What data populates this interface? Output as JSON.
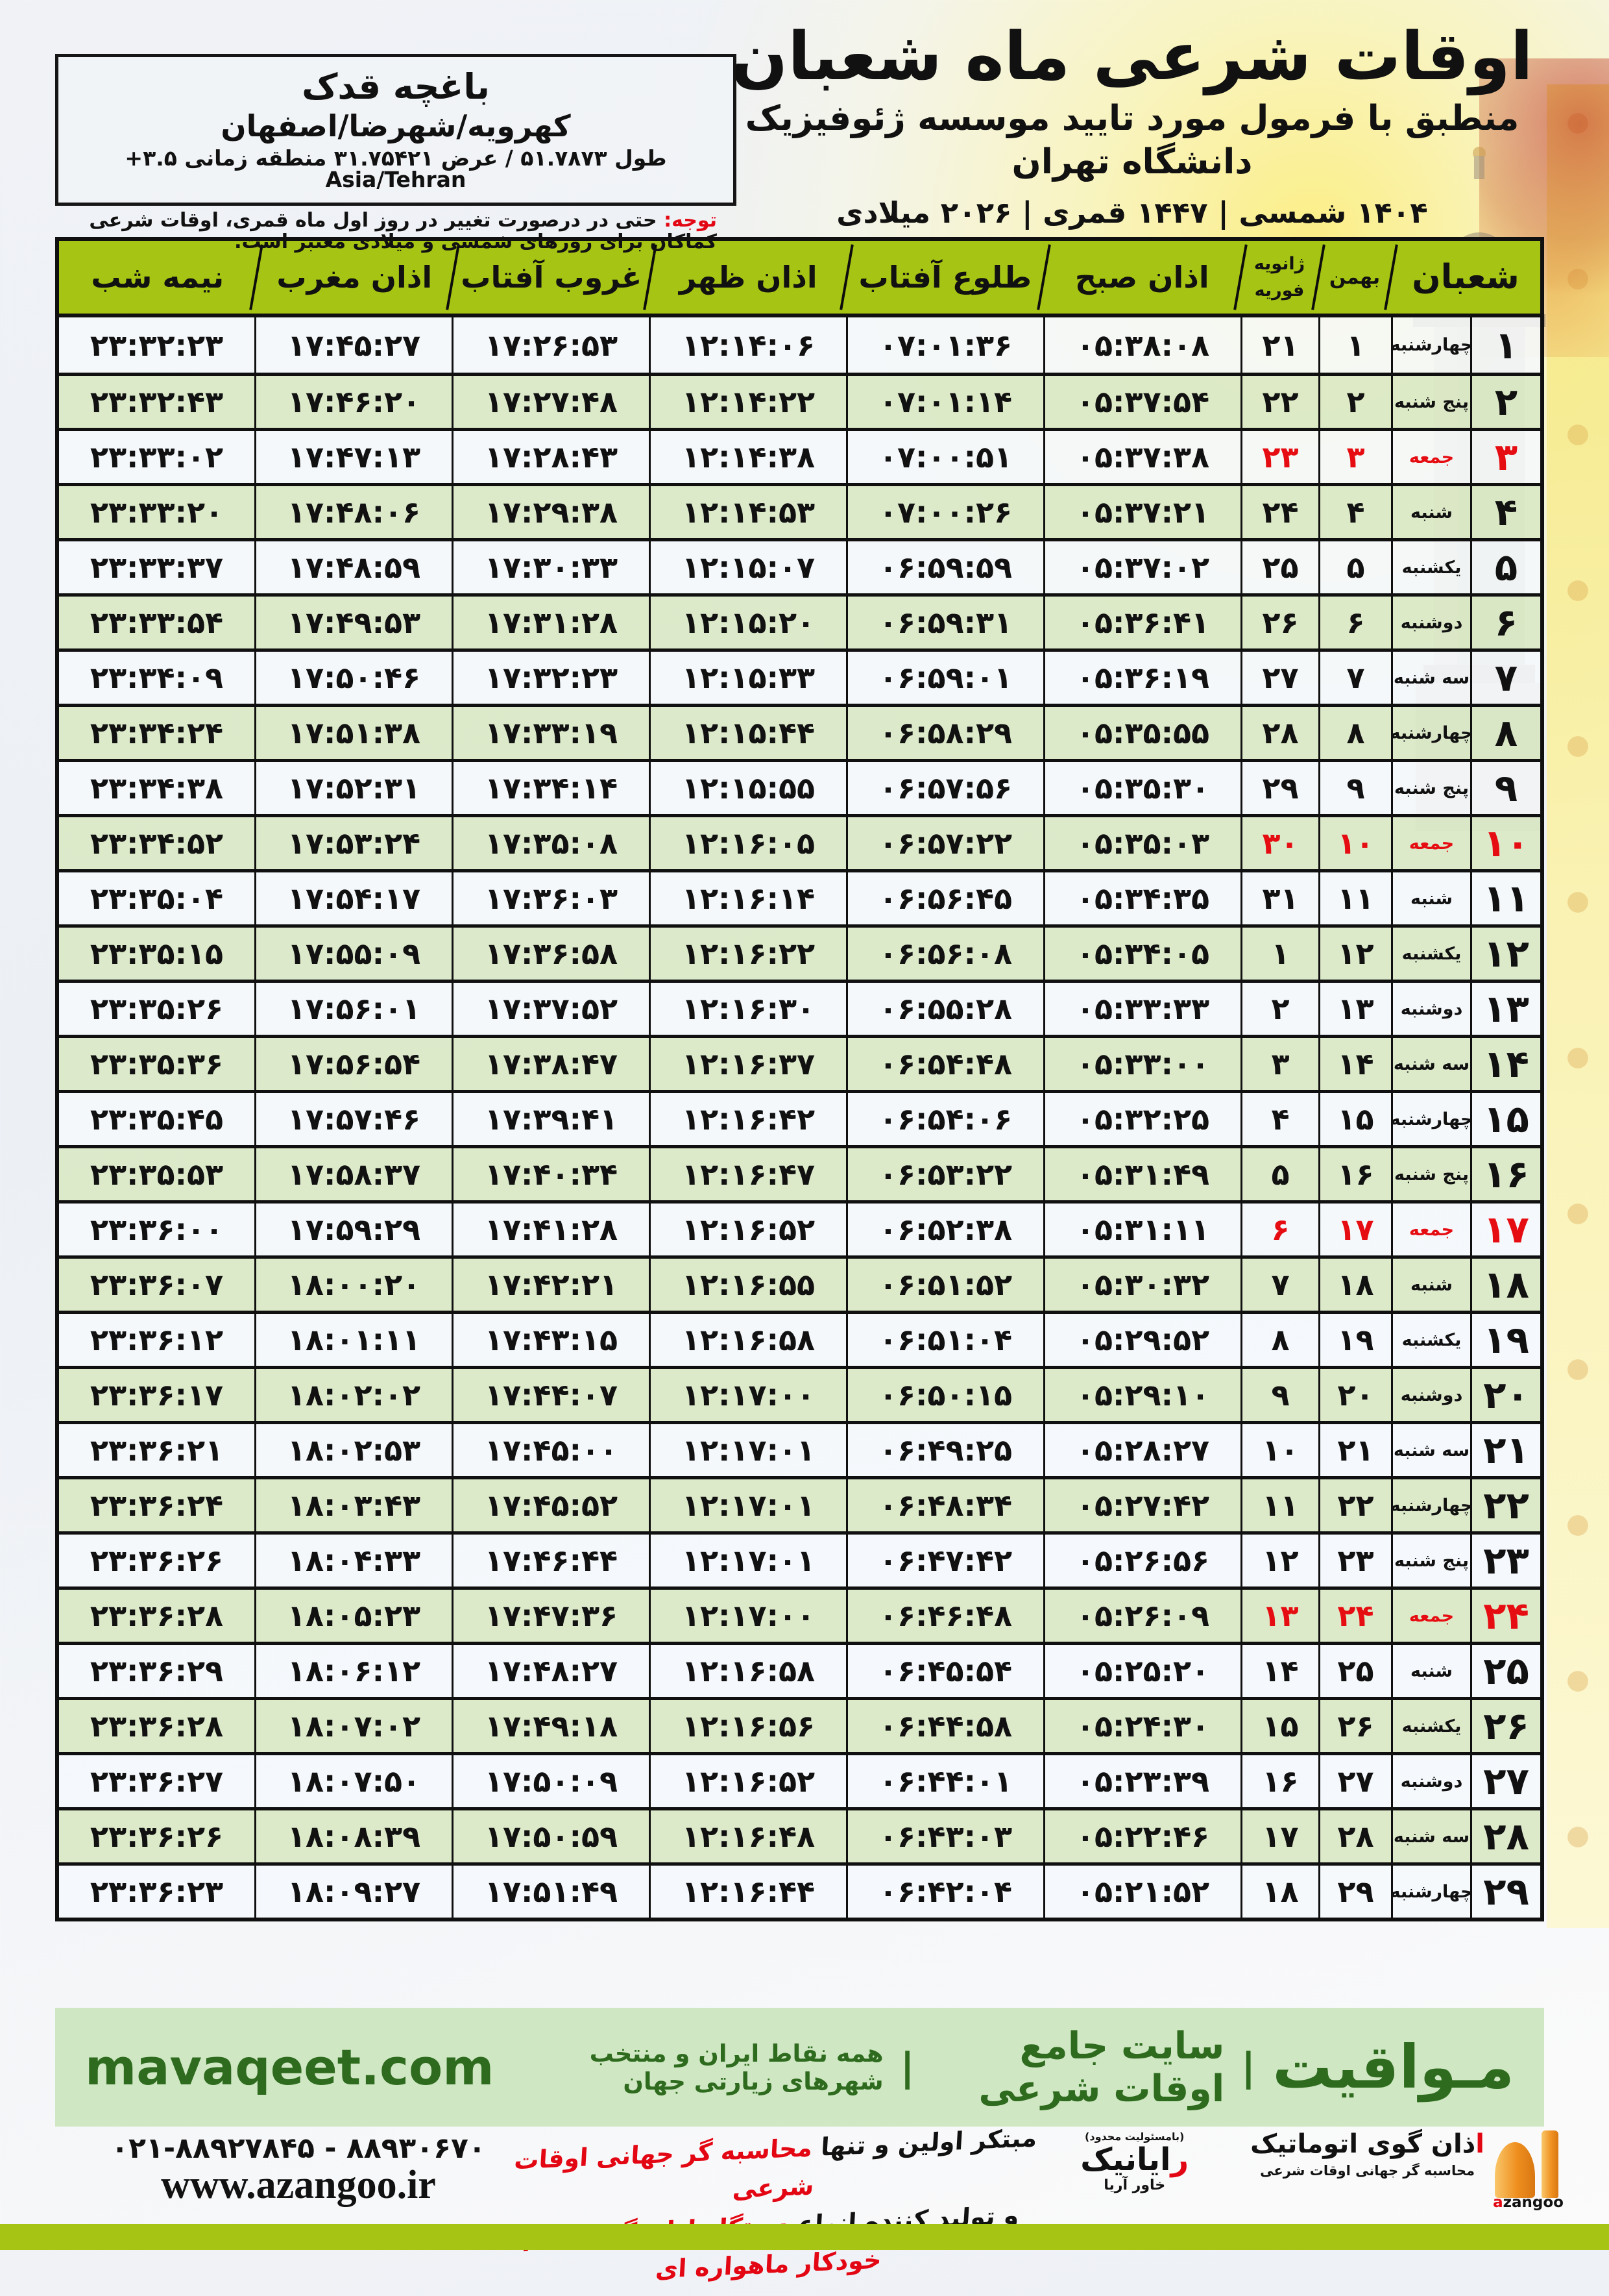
{
  "colors": {
    "header_green": "#a6c413",
    "row_green": "#dae8c6",
    "row_white": "#f5f8fb",
    "accent_red": "#e60d12",
    "band_bg": "#cfe8c3",
    "band_text": "#2e6b1e",
    "bottom_bar": "#a6c413"
  },
  "location_box": {
    "name": "باغچه قدک",
    "region": "کهرویه/شهرضا/اصفهان",
    "coords": "طول ۵۱.۷۸۷۳ / عرض ۳۱.۷۵۴۲۱ منطقه زمانی ۳.۵+ Asia/Tehran"
  },
  "header": {
    "title": "اوقات شرعی ماه شعبان",
    "subtitle": "منطبق با فرمول مورد تایید موسسه ژئوفیزیک دانشگاه تهران",
    "years": "۱۴۰۴ شمسی | ۱۴۴۷ قمری | ۲۰۲۶ میلادی"
  },
  "notice": {
    "label": "توجه:",
    "text": " حتی در درصورت تغییر در روز اول ماه قمری، اوقات شرعی کماکان برای روزهای شمسی و میلادی معتبر است."
  },
  "table": {
    "headers": {
      "shaban": "شعبان",
      "bahman": "بهمن",
      "jan": "ژانویه",
      "feb": "فوریه",
      "sobh": "اذان صبح",
      "tolu": "طلوع آفتاب",
      "zohr": "اذان ظهر",
      "ghorub": "غروب آفتاب",
      "maghreb": "اذان مغرب",
      "nimeshab": "نیمه شب"
    },
    "rows": [
      {
        "shaban": "۱",
        "weekday": "چهارشنبه",
        "bahman": "۱",
        "greg": "۲۱",
        "sobh": "۰۵:۳۸:۰۸",
        "tolu": "۰۷:۰۱:۳۶",
        "zohr": "۱۲:۱۴:۰۶",
        "ghorub": "۱۷:۲۶:۵۳",
        "maghreb": "۱۷:۴۵:۲۷",
        "nimeshab": "۲۳:۳۲:۲۳",
        "friday": false
      },
      {
        "shaban": "۲",
        "weekday": "پنج شنبه",
        "bahman": "۲",
        "greg": "۲۲",
        "sobh": "۰۵:۳۷:۵۴",
        "tolu": "۰۷:۰۱:۱۴",
        "zohr": "۱۲:۱۴:۲۲",
        "ghorub": "۱۷:۲۷:۴۸",
        "maghreb": "۱۷:۴۶:۲۰",
        "nimeshab": "۲۳:۳۲:۴۳",
        "friday": false
      },
      {
        "shaban": "۳",
        "weekday": "جمعه",
        "bahman": "۳",
        "greg": "۲۳",
        "sobh": "۰۵:۳۷:۳۸",
        "tolu": "۰۷:۰۰:۵۱",
        "zohr": "۱۲:۱۴:۳۸",
        "ghorub": "۱۷:۲۸:۴۳",
        "maghreb": "۱۷:۴۷:۱۳",
        "nimeshab": "۲۳:۳۳:۰۲",
        "friday": true
      },
      {
        "shaban": "۴",
        "weekday": "شنبه",
        "bahman": "۴",
        "greg": "۲۴",
        "sobh": "۰۵:۳۷:۲۱",
        "tolu": "۰۷:۰۰:۲۶",
        "zohr": "۱۲:۱۴:۵۳",
        "ghorub": "۱۷:۲۹:۳۸",
        "maghreb": "۱۷:۴۸:۰۶",
        "nimeshab": "۲۳:۳۳:۲۰",
        "friday": false
      },
      {
        "shaban": "۵",
        "weekday": "یکشنبه",
        "bahman": "۵",
        "greg": "۲۵",
        "sobh": "۰۵:۳۷:۰۲",
        "tolu": "۰۶:۵۹:۵۹",
        "zohr": "۱۲:۱۵:۰۷",
        "ghorub": "۱۷:۳۰:۳۳",
        "maghreb": "۱۷:۴۸:۵۹",
        "nimeshab": "۲۳:۳۳:۳۷",
        "friday": false
      },
      {
        "shaban": "۶",
        "weekday": "دوشنبه",
        "bahman": "۶",
        "greg": "۲۶",
        "sobh": "۰۵:۳۶:۴۱",
        "tolu": "۰۶:۵۹:۳۱",
        "zohr": "۱۲:۱۵:۲۰",
        "ghorub": "۱۷:۳۱:۲۸",
        "maghreb": "۱۷:۴۹:۵۳",
        "nimeshab": "۲۳:۳۳:۵۴",
        "friday": false
      },
      {
        "shaban": "۷",
        "weekday": "سه شنبه",
        "bahman": "۷",
        "greg": "۲۷",
        "sobh": "۰۵:۳۶:۱۹",
        "tolu": "۰۶:۵۹:۰۱",
        "zohr": "۱۲:۱۵:۳۳",
        "ghorub": "۱۷:۳۲:۲۳",
        "maghreb": "۱۷:۵۰:۴۶",
        "nimeshab": "۲۳:۳۴:۰۹",
        "friday": false
      },
      {
        "shaban": "۸",
        "weekday": "چهارشنبه",
        "bahman": "۸",
        "greg": "۲۸",
        "sobh": "۰۵:۳۵:۵۵",
        "tolu": "۰۶:۵۸:۲۹",
        "zohr": "۱۲:۱۵:۴۴",
        "ghorub": "۱۷:۳۳:۱۹",
        "maghreb": "۱۷:۵۱:۳۸",
        "nimeshab": "۲۳:۳۴:۲۴",
        "friday": false
      },
      {
        "shaban": "۹",
        "weekday": "پنج شنبه",
        "bahman": "۹",
        "greg": "۲۹",
        "sobh": "۰۵:۳۵:۳۰",
        "tolu": "۰۶:۵۷:۵۶",
        "zohr": "۱۲:۱۵:۵۵",
        "ghorub": "۱۷:۳۴:۱۴",
        "maghreb": "۱۷:۵۲:۳۱",
        "nimeshab": "۲۳:۳۴:۳۸",
        "friday": false
      },
      {
        "shaban": "۱۰",
        "weekday": "جمعه",
        "bahman": "۱۰",
        "greg": "۳۰",
        "sobh": "۰۵:۳۵:۰۳",
        "tolu": "۰۶:۵۷:۲۲",
        "zohr": "۱۲:۱۶:۰۵",
        "ghorub": "۱۷:۳۵:۰۸",
        "maghreb": "۱۷:۵۳:۲۴",
        "nimeshab": "۲۳:۳۴:۵۲",
        "friday": true
      },
      {
        "shaban": "۱۱",
        "weekday": "شنبه",
        "bahman": "۱۱",
        "greg": "۳۱",
        "sobh": "۰۵:۳۴:۳۵",
        "tolu": "۰۶:۵۶:۴۵",
        "zohr": "۱۲:۱۶:۱۴",
        "ghorub": "۱۷:۳۶:۰۳",
        "maghreb": "۱۷:۵۴:۱۷",
        "nimeshab": "۲۳:۳۵:۰۴",
        "friday": false
      },
      {
        "shaban": "۱۲",
        "weekday": "یکشنبه",
        "bahman": "۱۲",
        "greg": "۱",
        "sobh": "۰۵:۳۴:۰۵",
        "tolu": "۰۶:۵۶:۰۸",
        "zohr": "۱۲:۱۶:۲۲",
        "ghorub": "۱۷:۳۶:۵۸",
        "maghreb": "۱۷:۵۵:۰۹",
        "nimeshab": "۲۳:۳۵:۱۵",
        "friday": false
      },
      {
        "shaban": "۱۳",
        "weekday": "دوشنبه",
        "bahman": "۱۳",
        "greg": "۲",
        "sobh": "۰۵:۳۳:۳۳",
        "tolu": "۰۶:۵۵:۲۸",
        "zohr": "۱۲:۱۶:۳۰",
        "ghorub": "۱۷:۳۷:۵۲",
        "maghreb": "۱۷:۵۶:۰۱",
        "nimeshab": "۲۳:۳۵:۲۶",
        "friday": false
      },
      {
        "shaban": "۱۴",
        "weekday": "سه شنبه",
        "bahman": "۱۴",
        "greg": "۳",
        "sobh": "۰۵:۳۳:۰۰",
        "tolu": "۰۶:۵۴:۴۸",
        "zohr": "۱۲:۱۶:۳۷",
        "ghorub": "۱۷:۳۸:۴۷",
        "maghreb": "۱۷:۵۶:۵۴",
        "nimeshab": "۲۳:۳۵:۳۶",
        "friday": false
      },
      {
        "shaban": "۱۵",
        "weekday": "چهارشنبه",
        "bahman": "۱۵",
        "greg": "۴",
        "sobh": "۰۵:۳۲:۲۵",
        "tolu": "۰۶:۵۴:۰۶",
        "zohr": "۱۲:۱۶:۴۲",
        "ghorub": "۱۷:۳۹:۴۱",
        "maghreb": "۱۷:۵۷:۴۶",
        "nimeshab": "۲۳:۳۵:۴۵",
        "friday": false
      },
      {
        "shaban": "۱۶",
        "weekday": "پنج شنبه",
        "bahman": "۱۶",
        "greg": "۵",
        "sobh": "۰۵:۳۱:۴۹",
        "tolu": "۰۶:۵۳:۲۲",
        "zohr": "۱۲:۱۶:۴۷",
        "ghorub": "۱۷:۴۰:۳۴",
        "maghreb": "۱۷:۵۸:۳۷",
        "nimeshab": "۲۳:۳۵:۵۳",
        "friday": false
      },
      {
        "shaban": "۱۷",
        "weekday": "جمعه",
        "bahman": "۱۷",
        "greg": "۶",
        "sobh": "۰۵:۳۱:۱۱",
        "tolu": "۰۶:۵۲:۳۸",
        "zohr": "۱۲:۱۶:۵۲",
        "ghorub": "۱۷:۴۱:۲۸",
        "maghreb": "۱۷:۵۹:۲۹",
        "nimeshab": "۲۳:۳۶:۰۰",
        "friday": true
      },
      {
        "shaban": "۱۸",
        "weekday": "شنبه",
        "bahman": "۱۸",
        "greg": "۷",
        "sobh": "۰۵:۳۰:۳۲",
        "tolu": "۰۶:۵۱:۵۲",
        "zohr": "۱۲:۱۶:۵۵",
        "ghorub": "۱۷:۴۲:۲۱",
        "maghreb": "۱۸:۰۰:۲۰",
        "nimeshab": "۲۳:۳۶:۰۷",
        "friday": false
      },
      {
        "shaban": "۱۹",
        "weekday": "یکشنبه",
        "bahman": "۱۹",
        "greg": "۸",
        "sobh": "۰۵:۲۹:۵۲",
        "tolu": "۰۶:۵۱:۰۴",
        "zohr": "۱۲:۱۶:۵۸",
        "ghorub": "۱۷:۴۳:۱۵",
        "maghreb": "۱۸:۰۱:۱۱",
        "nimeshab": "۲۳:۳۶:۱۲",
        "friday": false
      },
      {
        "shaban": "۲۰",
        "weekday": "دوشنبه",
        "bahman": "۲۰",
        "greg": "۹",
        "sobh": "۰۵:۲۹:۱۰",
        "tolu": "۰۶:۵۰:۱۵",
        "zohr": "۱۲:۱۷:۰۰",
        "ghorub": "۱۷:۴۴:۰۷",
        "maghreb": "۱۸:۰۲:۰۲",
        "nimeshab": "۲۳:۳۶:۱۷",
        "friday": false
      },
      {
        "shaban": "۲۱",
        "weekday": "سه شنبه",
        "bahman": "۲۱",
        "greg": "۱۰",
        "sobh": "۰۵:۲۸:۲۷",
        "tolu": "۰۶:۴۹:۲۵",
        "zohr": "۱۲:۱۷:۰۱",
        "ghorub": "۱۷:۴۵:۰۰",
        "maghreb": "۱۸:۰۲:۵۳",
        "nimeshab": "۲۳:۳۶:۲۱",
        "friday": false
      },
      {
        "shaban": "۲۲",
        "weekday": "چهارشنبه",
        "bahman": "۲۲",
        "greg": "۱۱",
        "sobh": "۰۵:۲۷:۴۲",
        "tolu": "۰۶:۴۸:۳۴",
        "zohr": "۱۲:۱۷:۰۱",
        "ghorub": "۱۷:۴۵:۵۲",
        "maghreb": "۱۸:۰۳:۴۳",
        "nimeshab": "۲۳:۳۶:۲۴",
        "friday": false
      },
      {
        "shaban": "۲۳",
        "weekday": "پنج شنبه",
        "bahman": "۲۳",
        "greg": "۱۲",
        "sobh": "۰۵:۲۶:۵۶",
        "tolu": "۰۶:۴۷:۴۲",
        "zohr": "۱۲:۱۷:۰۱",
        "ghorub": "۱۷:۴۶:۴۴",
        "maghreb": "۱۸:۰۴:۳۳",
        "nimeshab": "۲۳:۳۶:۲۶",
        "friday": false
      },
      {
        "shaban": "۲۴",
        "weekday": "جمعه",
        "bahman": "۲۴",
        "greg": "۱۳",
        "sobh": "۰۵:۲۶:۰۹",
        "tolu": "۰۶:۴۶:۴۸",
        "zohr": "۱۲:۱۷:۰۰",
        "ghorub": "۱۷:۴۷:۳۶",
        "maghreb": "۱۸:۰۵:۲۳",
        "nimeshab": "۲۳:۳۶:۲۸",
        "friday": true
      },
      {
        "shaban": "۲۵",
        "weekday": "شنبه",
        "bahman": "۲۵",
        "greg": "۱۴",
        "sobh": "۰۵:۲۵:۲۰",
        "tolu": "۰۶:۴۵:۵۴",
        "zohr": "۱۲:۱۶:۵۸",
        "ghorub": "۱۷:۴۸:۲۷",
        "maghreb": "۱۸:۰۶:۱۲",
        "nimeshab": "۲۳:۳۶:۲۹",
        "friday": false
      },
      {
        "shaban": "۲۶",
        "weekday": "یکشنبه",
        "bahman": "۲۶",
        "greg": "۱۵",
        "sobh": "۰۵:۲۴:۳۰",
        "tolu": "۰۶:۴۴:۵۸",
        "zohr": "۱۲:۱۶:۵۶",
        "ghorub": "۱۷:۴۹:۱۸",
        "maghreb": "۱۸:۰۷:۰۲",
        "nimeshab": "۲۳:۳۶:۲۸",
        "friday": false
      },
      {
        "shaban": "۲۷",
        "weekday": "دوشنبه",
        "bahman": "۲۷",
        "greg": "۱۶",
        "sobh": "۰۵:۲۳:۳۹",
        "tolu": "۰۶:۴۴:۰۱",
        "zohr": "۱۲:۱۶:۵۲",
        "ghorub": "۱۷:۵۰:۰۹",
        "maghreb": "۱۸:۰۷:۵۰",
        "nimeshab": "۲۳:۳۶:۲۷",
        "friday": false
      },
      {
        "shaban": "۲۸",
        "weekday": "سه شنبه",
        "bahman": "۲۸",
        "greg": "۱۷",
        "sobh": "۰۵:۲۲:۴۶",
        "tolu": "۰۶:۴۳:۰۳",
        "zohr": "۱۲:۱۶:۴۸",
        "ghorub": "۱۷:۵۰:۵۹",
        "maghreb": "۱۸:۰۸:۳۹",
        "nimeshab": "۲۳:۳۶:۲۶",
        "friday": false
      },
      {
        "shaban": "۲۹",
        "weekday": "چهارشنبه",
        "bahman": "۲۹",
        "greg": "۱۸",
        "sobh": "۰۵:۲۱:۵۲",
        "tolu": "۰۶:۴۲:۰۴",
        "zohr": "۱۲:۱۶:۴۴",
        "ghorub": "۱۷:۵۱:۴۹",
        "maghreb": "۱۸:۰۹:۲۷",
        "nimeshab": "۲۳:۳۶:۲۳",
        "friday": false
      }
    ]
  },
  "brand_band": {
    "brand": "مـواقیت",
    "divider": "|",
    "site_label": "سایت جامع اوقات شرعی",
    "tagline": "همه نقاط ایران و منتخب شهرهای زیارتی جهان",
    "domain": "mavaqeet.com"
  },
  "bottom": {
    "phones": "۰۲۱-۸۸۹۲۷۸۴۵ - ۸۸۹۳۰۶۷۰",
    "website": "www.azangoo.ir",
    "promo_line1_black": "مبتکر اولین و تنها ",
    "promo_line1_red": "محاسبه گر جهانی اوقات شرعی",
    "promo_line2_black": "و تولید کننده انواع ",
    "promo_line2_red": "دستگاه اذان گوی تمام خودکار ماهواره ای",
    "azangoo_logo": {
      "alef": "ا",
      "title_rest": "ذان گوی اتوماتیک",
      "subtitle": "محاسبه گر جهانی اوقات شرعی",
      "latin_a": "a",
      "latin_rest": "zangoo"
    },
    "rayanik_logo": {
      "note": "(بامسئولیت محدود)",
      "r": "ر",
      "name_rest": "ایانیک",
      "side": "خاور آریا"
    }
  }
}
